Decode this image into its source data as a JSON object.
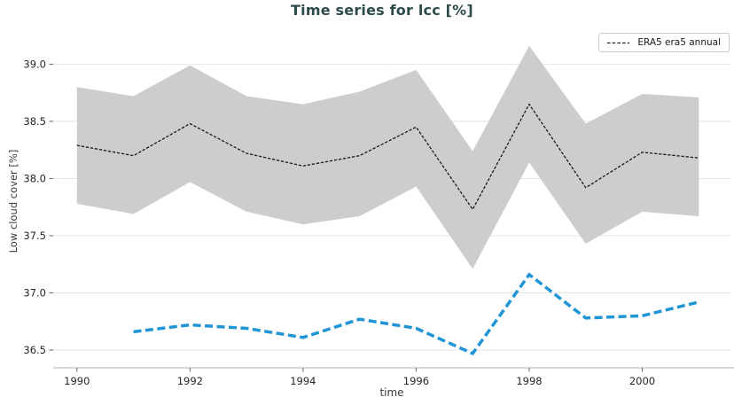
{
  "title": "Time series for lcc [%]",
  "legend": {
    "items": [
      {
        "label": "ERA5 era5 annual"
      }
    ]
  },
  "chart_data": {
    "type": "line",
    "title": "Time series for lcc [%]",
    "xlabel": "time",
    "ylabel": "Low cloud cover [%]",
    "xlim": [
      1989.58,
      2001.56
    ],
    "ylim": [
      36.345,
      39.29
    ],
    "xticks": [
      1990,
      1992,
      1994,
      1996,
      1998,
      2000
    ],
    "yticks": [
      36.5,
      37.0,
      37.5,
      38.0,
      38.5,
      39.0
    ],
    "grid": "horizontal",
    "legend_position": "top-right",
    "series": [
      {
        "name": "ERA5 era5 annual",
        "color": "#1a1a1a",
        "line_style": "dashed",
        "dash": [
          3.3,
          1.8
        ],
        "line_width": 1.3,
        "in_legend": true,
        "x": [
          1990,
          1991,
          1992,
          1993,
          1994,
          1995,
          1996,
          1997,
          1998,
          1999,
          2000,
          2001
        ],
        "y": [
          38.29,
          38.2,
          38.48,
          38.22,
          38.11,
          38.2,
          38.45,
          37.73,
          38.65,
          37.92,
          38.23,
          38.18
        ],
        "band": {
          "color": "#cdcdcd",
          "upper": [
            38.8,
            38.72,
            38.99,
            38.72,
            38.65,
            38.76,
            38.95,
            38.24,
            39.16,
            38.48,
            38.74,
            38.71
          ],
          "lower": [
            37.78,
            37.69,
            37.97,
            37.71,
            37.6,
            37.67,
            37.93,
            37.21,
            38.14,
            37.43,
            37.71,
            37.67
          ]
        }
      },
      {
        "color": "#2095d6",
        "line_style": "dashed",
        "dash": [
          9,
          4.5
        ],
        "line_width": 3.5,
        "in_legend": false,
        "x": [
          1991,
          1992,
          1993,
          1994,
          1995,
          1996,
          1997,
          1998,
          1999,
          2000,
          2001
        ],
        "y": [
          36.66,
          36.72,
          36.69,
          36.61,
          36.77,
          36.69,
          36.47,
          37.16,
          36.78,
          36.8,
          36.92
        ]
      }
    ],
    "colors": {
      "grid": "#e4e4e4",
      "spine": "#d2d2d2",
      "tick": "#666666",
      "tick_label": "#262626",
      "axis_label": "#3a3a3a",
      "title": "#2e4b4b",
      "band": "#cdcdcd",
      "legend_border": "#c9c9c9"
    }
  }
}
